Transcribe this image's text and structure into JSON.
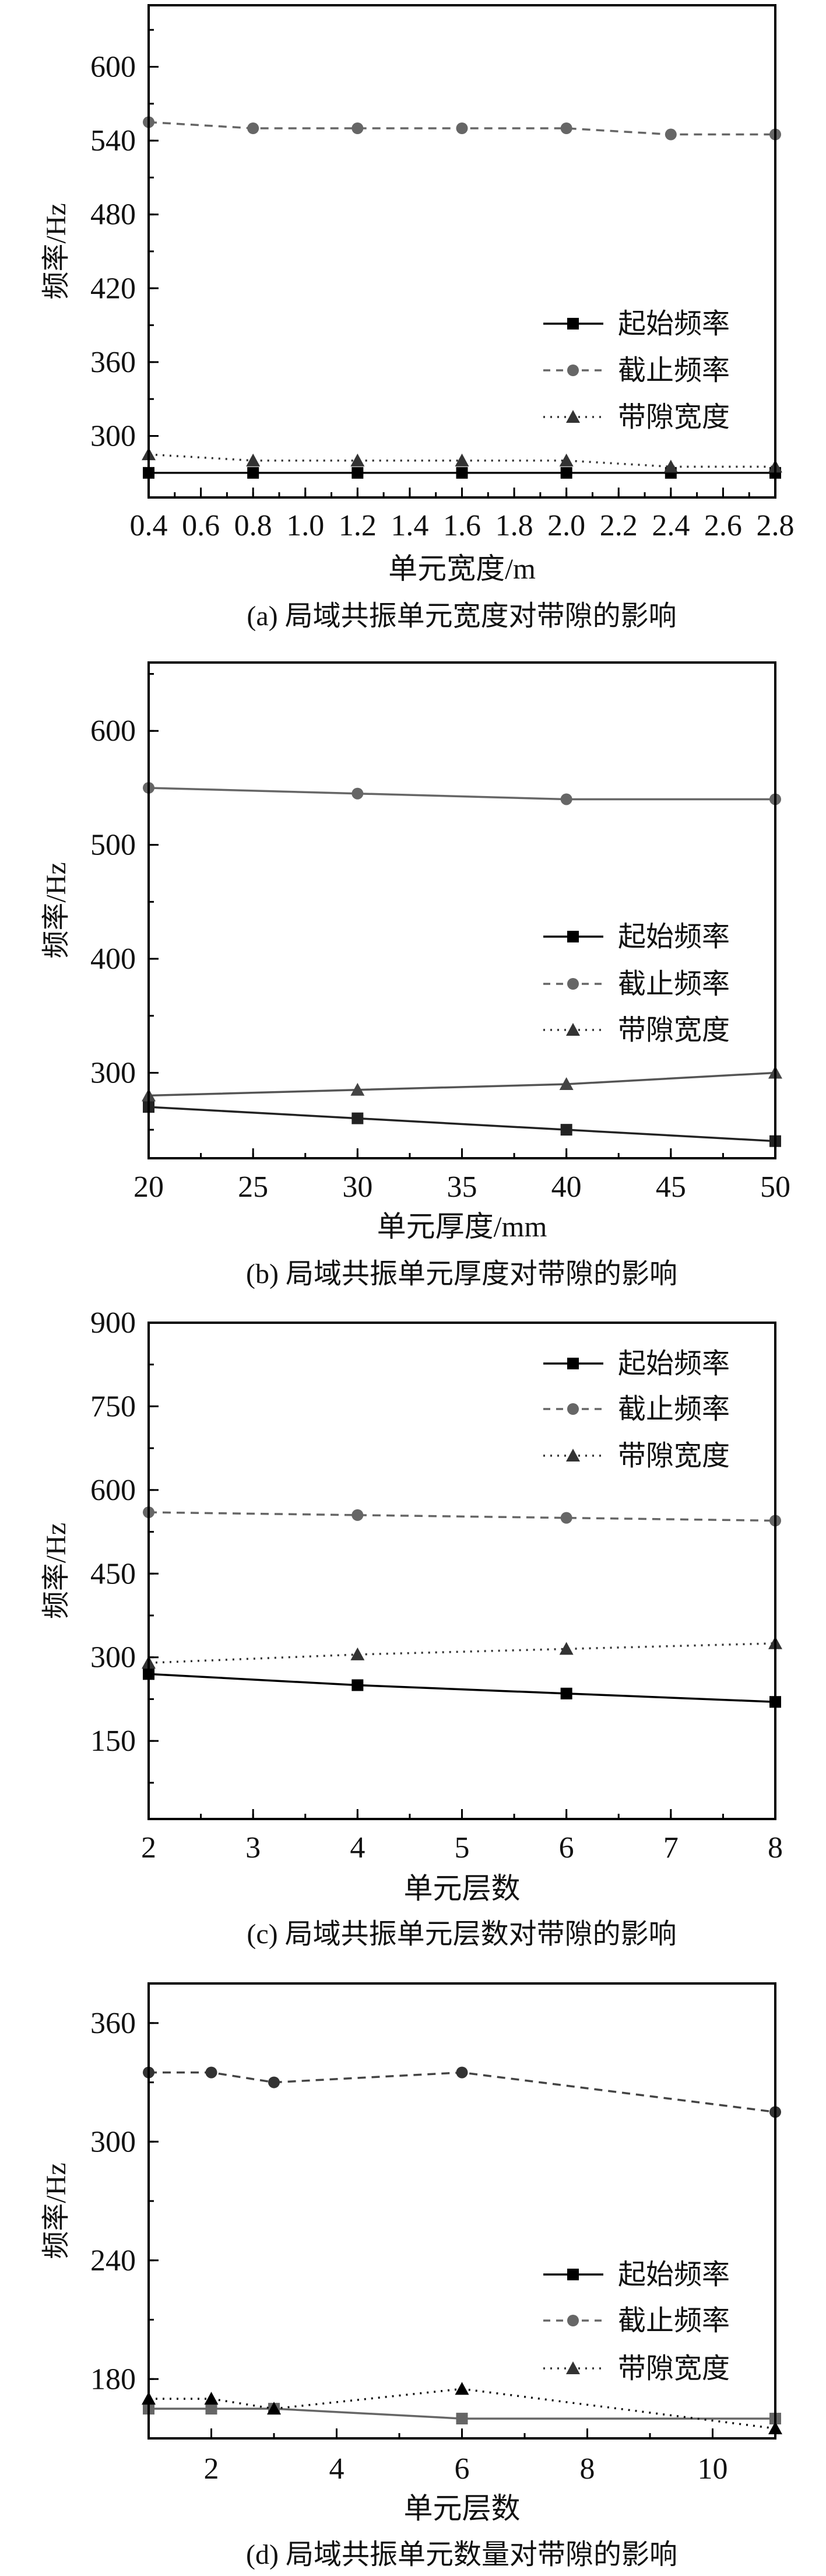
{
  "legend_labels": [
    "起始频率",
    "截止频率",
    "带隙宽度"
  ],
  "y_axis_label": "频率/Hz",
  "chart_data": [
    {
      "type": "line",
      "caption": "(a) 局域共振单元宽度对带隙的影响",
      "xlabel": "单元宽度/m",
      "ylabel": "频率/Hz",
      "xlim": [
        0.4,
        2.8
      ],
      "ylim": [
        250,
        650
      ],
      "xticks": [
        0.4,
        0.6,
        0.8,
        1.0,
        1.2,
        1.4,
        1.6,
        1.8,
        2.0,
        2.2,
        2.4,
        2.6,
        2.8
      ],
      "xtick_labels": [
        "0.4",
        "0.6",
        "0.8",
        "1.0",
        "1.2",
        "1.4",
        "1.6",
        "1.8",
        "2.0",
        "2.2",
        "2.4",
        "2.6",
        "2.8"
      ],
      "yticks": [
        300,
        360,
        420,
        480,
        540,
        600
      ],
      "ytick_labels": [
        "300",
        "360",
        "420",
        "480",
        "540",
        "600"
      ],
      "legend_position": "center-right",
      "x": [
        0.4,
        0.8,
        1.2,
        1.6,
        2.0,
        2.4,
        2.8
      ],
      "series": [
        {
          "name": "起始频率",
          "values": [
            270,
            270,
            270,
            270,
            270,
            270,
            270
          ]
        },
        {
          "name": "截止频率",
          "values": [
            555,
            550,
            550,
            550,
            550,
            545,
            545
          ]
        },
        {
          "name": "带隙宽度",
          "values": [
            285,
            280,
            280,
            280,
            280,
            275,
            275
          ]
        }
      ]
    },
    {
      "type": "line",
      "caption": "(b) 局域共振单元厚度对带隙的影响",
      "xlabel": "单元厚度/mm",
      "ylabel": "频率/Hz",
      "xlim": [
        20,
        50
      ],
      "ylim": [
        225,
        660
      ],
      "xticks": [
        20,
        25,
        30,
        35,
        40,
        45,
        50
      ],
      "xtick_labels": [
        "20",
        "25",
        "30",
        "35",
        "40",
        "45",
        "50"
      ],
      "yticks": [
        300,
        400,
        500,
        600
      ],
      "ytick_labels": [
        "300",
        "400",
        "500",
        "600"
      ],
      "legend_position": "center-right",
      "x": [
        20,
        30,
        40,
        50
      ],
      "series": [
        {
          "name": "起始频率",
          "values": [
            270,
            260,
            250,
            240
          ]
        },
        {
          "name": "截止频率",
          "values": [
            550,
            545,
            540,
            540
          ]
        },
        {
          "name": "带隙宽度",
          "values": [
            280,
            285,
            290,
            300
          ]
        }
      ]
    },
    {
      "type": "line",
      "caption": "(c) 局域共振单元层数对带隙的影响",
      "xlabel": "单元层数",
      "ylabel": "频率/Hz",
      "xlim": [
        2,
        8
      ],
      "ylim": [
        10,
        900
      ],
      "xticks": [
        2,
        3,
        4,
        5,
        6,
        7,
        8
      ],
      "xtick_labels": [
        "2",
        "3",
        "4",
        "5",
        "6",
        "7",
        "8"
      ],
      "yticks": [
        150,
        300,
        450,
        600,
        750,
        900
      ],
      "ytick_labels": [
        "150",
        "300",
        "450",
        "600",
        "750",
        "900"
      ],
      "legend_position": "top-right",
      "x": [
        2,
        4,
        6,
        8
      ],
      "series": [
        {
          "name": "起始频率",
          "values": [
            270,
            250,
            235,
            220
          ]
        },
        {
          "name": "截止频率",
          "values": [
            560,
            555,
            550,
            545
          ]
        },
        {
          "name": "带隙宽度",
          "values": [
            290,
            305,
            315,
            325
          ]
        }
      ]
    },
    {
      "type": "line",
      "caption": "(d) 局域共振单元数量对带隙的影响",
      "xlabel": "单元层数",
      "ylabel": "频率/Hz",
      "xlim": [
        1,
        11
      ],
      "ylim": [
        150,
        380
      ],
      "xticks": [
        2,
        4,
        6,
        8,
        10
      ],
      "xtick_labels": [
        "2",
        "4",
        "6",
        "8",
        "10"
      ],
      "yticks": [
        180,
        240,
        300,
        360
      ],
      "ytick_labels": [
        "180",
        "240",
        "300",
        "360"
      ],
      "legend_position": "bottom-right",
      "x": [
        1,
        2,
        3,
        6,
        11
      ],
      "series": [
        {
          "name": "起始频率",
          "values": [
            165,
            165,
            165,
            160,
            160
          ]
        },
        {
          "name": "截止频率",
          "values": [
            335,
            335,
            330,
            335,
            315
          ]
        },
        {
          "name": "带隙宽度",
          "values": [
            170,
            170,
            165,
            175,
            155
          ]
        }
      ]
    }
  ]
}
